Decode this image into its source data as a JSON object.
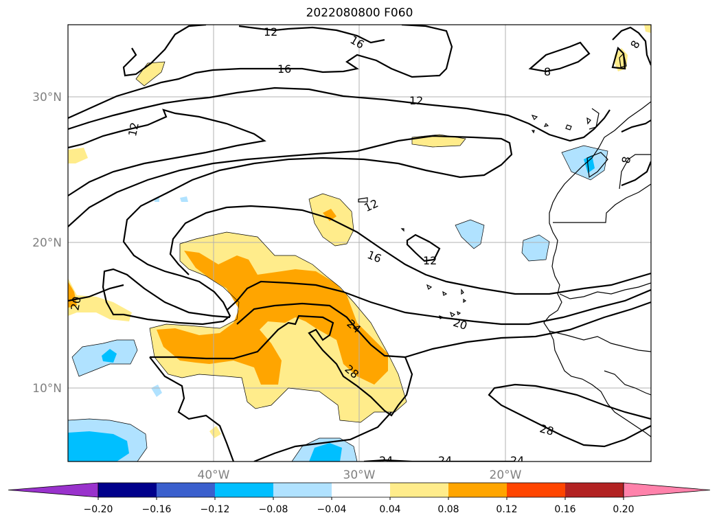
{
  "title": "2022080800 F060",
  "lat_labels": [
    "30°N",
    "20°N",
    "10°N"
  ],
  "lon_labels": [
    "40°W",
    "30°W",
    "20°W"
  ],
  "contour_labels": [
    "12",
    "16",
    "16",
    "12",
    "12",
    "12",
    "16",
    "12",
    "8",
    "8",
    "8",
    "20",
    "20",
    "24",
    "28",
    "28",
    "24",
    "24",
    "24"
  ],
  "colorbar": {
    "colors": [
      "#9932cc",
      "#00008b",
      "#3a5fcd",
      "#00bfff",
      "#b0e2ff",
      "#ffffff",
      "#ffec8b",
      "#ffa500",
      "#ff4500",
      "#b22222",
      "#ff82ab"
    ],
    "ticks": [
      "−0.20",
      "−0.16",
      "−0.12",
      "−0.08",
      "−0.04",
      "0.04",
      "0.08",
      "0.12",
      "0.16",
      "0.20"
    ]
  }
}
